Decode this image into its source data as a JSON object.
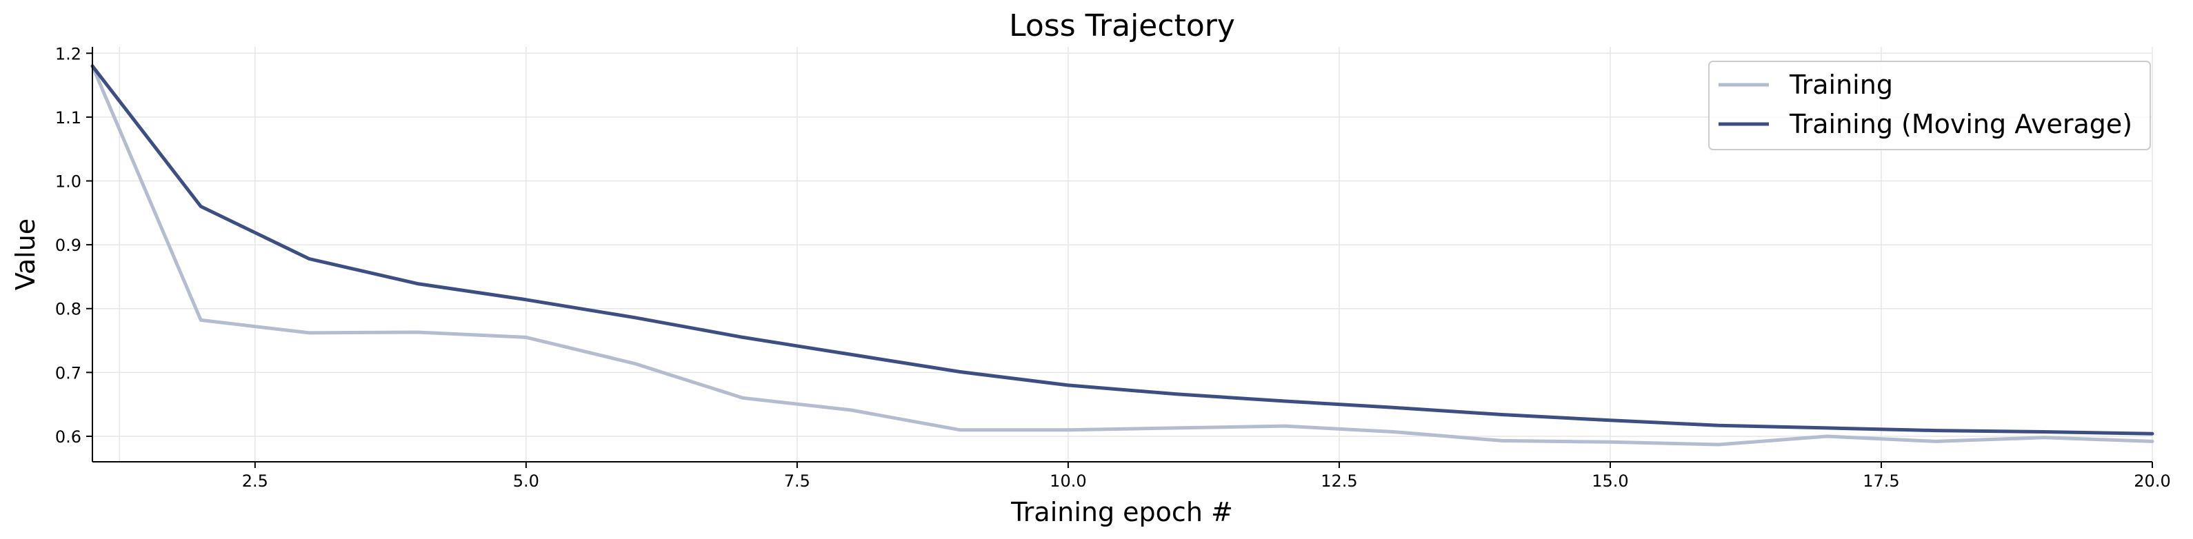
{
  "chart_data": {
    "type": "line",
    "title": "Loss Trajectory",
    "xlabel": "Training epoch #",
    "ylabel": "Value",
    "xlim": [
      1,
      20
    ],
    "ylim": [
      0.56,
      1.21
    ],
    "xticks": [
      2.5,
      5.0,
      7.5,
      10.0,
      12.5,
      15.0,
      17.5,
      20.0
    ],
    "xtick_labels": [
      "2.5",
      "5.0",
      "7.5",
      "10.0",
      "12.5",
      "15.0",
      "17.5",
      "20.0"
    ],
    "yticks": [
      0.6,
      0.7,
      0.8,
      0.9,
      1.0,
      1.1,
      1.2
    ],
    "ytick_labels": [
      "0.6",
      "0.7",
      "0.8",
      "0.9",
      "1.0",
      "1.1",
      "1.2"
    ],
    "grid": true,
    "legend_position": "top-right",
    "x": [
      1,
      2,
      3,
      4,
      5,
      6,
      7,
      8,
      9,
      10,
      11,
      12,
      13,
      14,
      15,
      16,
      17,
      18,
      19,
      20
    ],
    "series": [
      {
        "name": "Training",
        "color": "#b4bcd0",
        "values": [
          1.18,
          0.782,
          0.762,
          0.763,
          0.755,
          0.714,
          0.66,
          0.641,
          0.61,
          0.61,
          0.613,
          0.616,
          0.607,
          0.593,
          0.591,
          0.587,
          0.6,
          0.592,
          0.598,
          0.592
        ]
      },
      {
        "name": "Training (Moving Average)",
        "color": "#3d4f82",
        "values": [
          1.18,
          0.96,
          0.878,
          0.839,
          0.814,
          0.786,
          0.755,
          0.728,
          0.701,
          0.68,
          0.666,
          0.655,
          0.645,
          0.634,
          0.625,
          0.617,
          0.613,
          0.609,
          0.607,
          0.604
        ]
      }
    ]
  }
}
